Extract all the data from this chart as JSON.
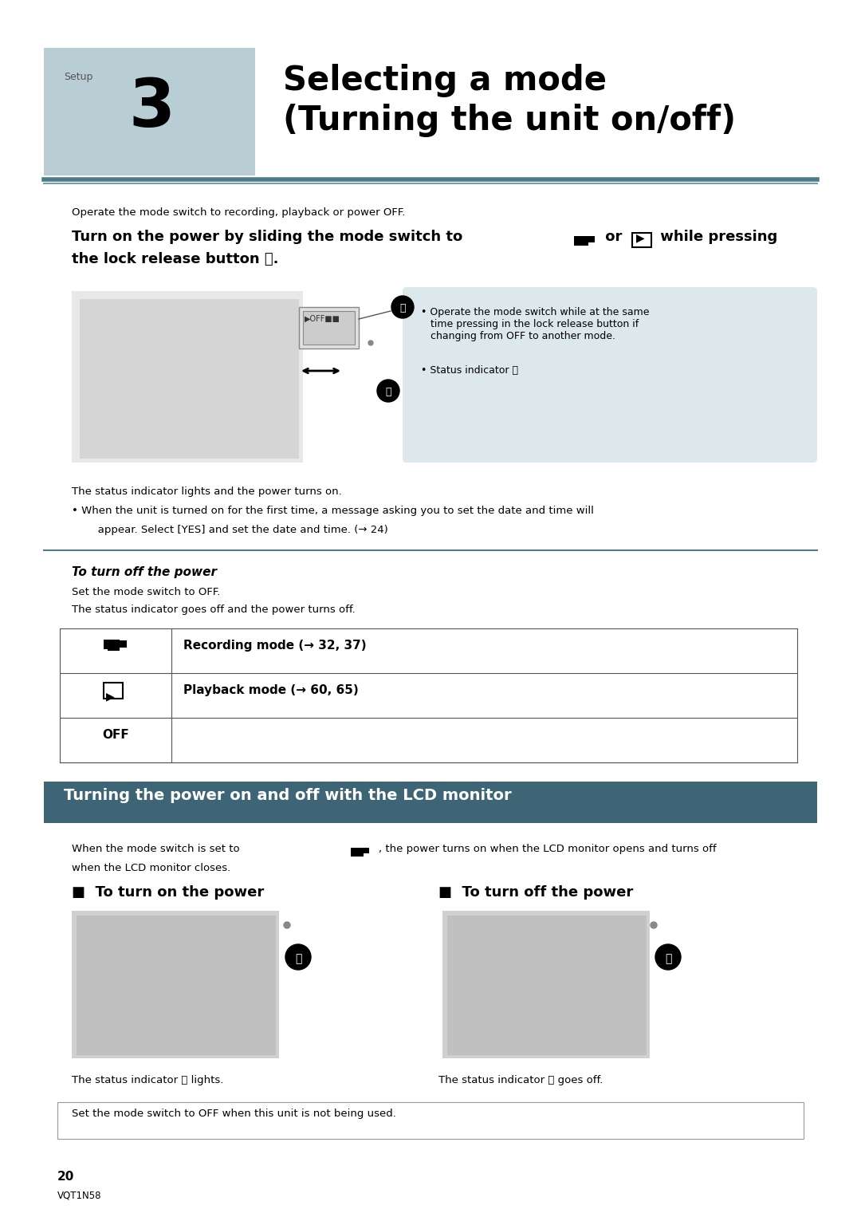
{
  "bg_color": "#ffffff",
  "header_bg": "#b8cdd4",
  "setup_label": "Setup",
  "chapter_num": "3",
  "title_line1": "Selecting a mode",
  "title_line2": "(Turning the unit on/off)",
  "divider_color": "#4a7c8c",
  "intro_text": "Operate the mode switch to recording, playback or power OFF.",
  "note_bg": "#dde8ec",
  "note_text1": "• Operate the mode switch while at the same\n   time pressing in the lock release button if\n   changing from OFF to another mode.",
  "note_text2": "• Status indicator Ⓑ",
  "status_text1": "The status indicator lights and the power turns on.",
  "bullet_text1": "• When the unit is turned on for the first time, a message asking you to set the date and time will",
  "bullet_text2": "   appear. Select [YES] and set the date and time. (→ 24)",
  "turn_off_heading": "To turn off the power",
  "turn_off_text1": "Set the mode switch to OFF.",
  "turn_off_text2": "The status indicator goes off and the power turns off.",
  "table_row1_text": "Recording mode (→ 32, 37)",
  "table_row2_text": "Playback mode (→ 60, 65)",
  "table_row3_icon": "OFF",
  "section2_bg": "#3d6575",
  "section2_text_color": "#ffffff",
  "section2_title": "Turning the power on and off with the LCD monitor",
  "lcd_intro1": "When the mode switch is set to        , the power turns on when the LCD monitor opens and turns off",
  "lcd_intro2": "when the LCD monitor closes.",
  "turn_on_heading": "■  To turn on the power",
  "turn_off_heading2": "■  To turn off the power",
  "status_on_text": "The status indicator Ⓐ lights.",
  "status_off_text": "The status indicator Ⓐ goes off.",
  "notice_text": "Set the mode switch to OFF when this unit is not being used.",
  "page_num": "20",
  "page_code": "VQT1N58"
}
